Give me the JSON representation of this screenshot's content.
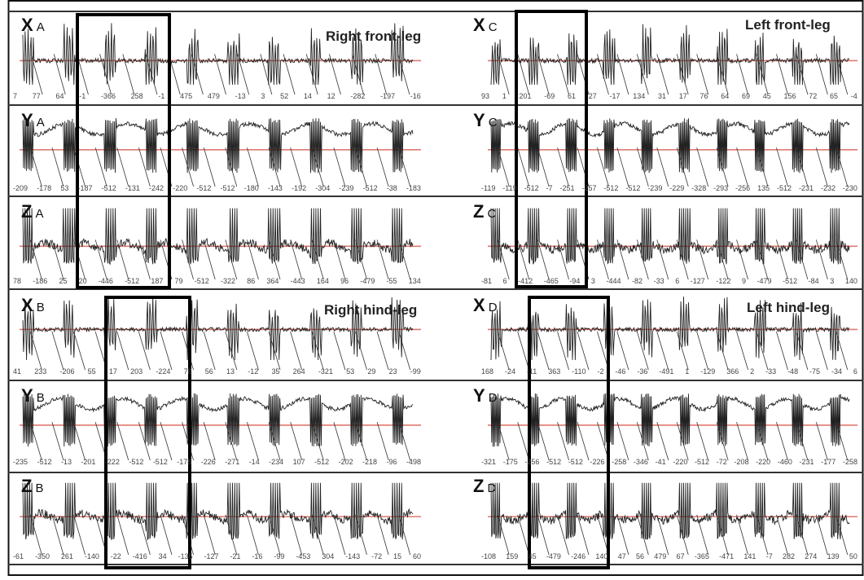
{
  "chart_data": {
    "type": "line",
    "reference_line_color": "#e07a70",
    "trace_color": "#222222",
    "highlight_box_color": "#000000",
    "panels": [
      {
        "row": 0,
        "col": 0,
        "axis": "X",
        "leg": "A",
        "ticks": [
          "7",
          "77",
          "64",
          "-1",
          "-366",
          "258",
          "-1",
          "475",
          "479",
          "-13",
          "3",
          "52",
          "14",
          "12",
          "-282",
          "-197",
          "-16"
        ]
      },
      {
        "row": 0,
        "col": 1,
        "axis": "X",
        "leg": "C",
        "ticks": [
          "93",
          "1",
          "201",
          "-69",
          "61",
          "27",
          "-17",
          "134",
          "31",
          "17",
          "76",
          "64",
          "69",
          "45",
          "156",
          "72",
          "65",
          "-4"
        ]
      },
      {
        "row": 1,
        "col": 0,
        "axis": "Y",
        "leg": "A",
        "ticks": [
          "-209",
          "-178",
          "53",
          "-187",
          "-512",
          "-131",
          "-242",
          "-220",
          "-512",
          "-512",
          "-180",
          "-143",
          "-192",
          "-304",
          "-239",
          "-512",
          "-38",
          "-183"
        ]
      },
      {
        "row": 1,
        "col": 1,
        "axis": "Y",
        "leg": "C",
        "ticks": [
          "-119",
          "-119",
          "-512",
          "-7",
          "-251",
          "-257",
          "-512",
          "-512",
          "-239",
          "-229",
          "-328",
          "-293",
          "-256",
          "135",
          "-512",
          "-231",
          "-232",
          "-230"
        ]
      },
      {
        "row": 2,
        "col": 0,
        "axis": "Z",
        "leg": "A",
        "ticks": [
          "78",
          "-186",
          "25",
          "20",
          "-446",
          "-512",
          "187",
          "79",
          "-512",
          "-322",
          "86",
          "364",
          "-443",
          "164",
          "96",
          "-479",
          "-55",
          "134"
        ]
      },
      {
        "row": 2,
        "col": 1,
        "axis": "Z",
        "leg": "C",
        "ticks": [
          "-81",
          "6",
          "-412",
          "-465",
          "-94",
          "3",
          "-444",
          "-82",
          "-33",
          "6",
          "-127",
          "-122",
          "9",
          "-479",
          "-512",
          "-84",
          "3",
          "140"
        ]
      },
      {
        "row": 3,
        "col": 0,
        "axis": "X",
        "leg": "B",
        "ticks": [
          "41",
          "233",
          "-206",
          "55",
          "17",
          "203",
          "-224",
          "78",
          "56",
          "13",
          "-12",
          "35",
          "264",
          "-321",
          "53",
          "29",
          "23",
          "-99"
        ]
      },
      {
        "row": 3,
        "col": 1,
        "axis": "X",
        "leg": "D",
        "ticks": [
          "168",
          "-24",
          "-11",
          "363",
          "-110",
          "-2",
          "-46",
          "-36",
          "-491",
          "1",
          "-129",
          "366",
          "2",
          "-33",
          "-48",
          "-75",
          "-34",
          "6"
        ]
      },
      {
        "row": 4,
        "col": 0,
        "axis": "Y",
        "leg": "B",
        "ticks": [
          "-235",
          "-512",
          "-13",
          "-201",
          "-222",
          "-512",
          "-512",
          "-178",
          "-226",
          "-271",
          "-14",
          "-234",
          "107",
          "-512",
          "-202",
          "-218",
          "-96",
          "-498"
        ]
      },
      {
        "row": 4,
        "col": 1,
        "axis": "Y",
        "leg": "D",
        "ticks": [
          "-321",
          "-175",
          "-256",
          "-512",
          "-512",
          "-226",
          "-258",
          "-346",
          "-41",
          "-220",
          "-512",
          "-72",
          "-208",
          "-220",
          "-460",
          "-231",
          "-177",
          "-258"
        ]
      },
      {
        "row": 5,
        "col": 0,
        "axis": "Z",
        "leg": "B",
        "ticks": [
          "-61",
          "-350",
          "261",
          "-140",
          "-22",
          "-416",
          "34",
          "-135",
          "-127",
          "-21",
          "-16",
          "-99",
          "-453",
          "304",
          "-143",
          "-72",
          "15",
          "60"
        ]
      },
      {
        "row": 5,
        "col": 1,
        "axis": "Z",
        "leg": "D",
        "ticks": [
          "-108",
          "159",
          "45",
          "-479",
          "-246",
          "140",
          "47",
          "56",
          "479",
          "67",
          "-365",
          "-471",
          "141",
          "-7",
          "282",
          "274",
          "139",
          "50"
        ]
      }
    ],
    "annotations": [
      {
        "text": "Right front-leg",
        "row": 0,
        "col": 0
      },
      {
        "text": "Left front-leg",
        "row": 0,
        "col": 1
      },
      {
        "text": "Right hind-leg",
        "row": 3,
        "col": 0
      },
      {
        "text": "Left hind-leg",
        "row": 3,
        "col": 1
      }
    ]
  }
}
